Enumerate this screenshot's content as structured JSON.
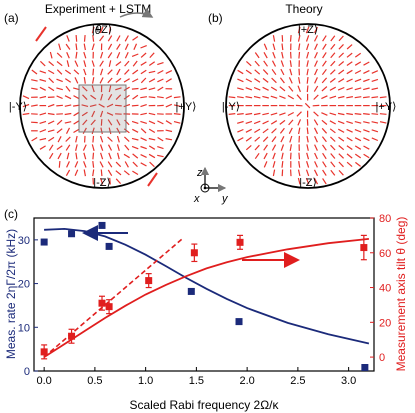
{
  "panels": {
    "a": {
      "label": "(a)",
      "title": "Experiment + LSTM"
    },
    "b": {
      "label": "(b)",
      "title": "Theory"
    },
    "c": {
      "label": "(c)"
    }
  },
  "bloch_labels": {
    "top": "|+Z⟩",
    "bottom": "|-Z⟩",
    "left": "|-Y⟩",
    "right": "|+Y⟩",
    "theta": "θ"
  },
  "axes_glyph": {
    "z": "z",
    "x": "x",
    "y": "y"
  },
  "colors": {
    "field": "#e8332c",
    "blue": "#1b2a7a",
    "red": "#e01e1e"
  },
  "chart_data": {
    "type": "scatter",
    "xlabel": "Scaled Rabi frequency 2Ω/κ",
    "ylabel_left": "Meas. rate 2ηΓ/2π (kHz)",
    "ylabel_right": "Measurement axis tilt θ (deg)",
    "xlim": [
      -0.1,
      3.25
    ],
    "ylim_left": [
      0,
      35
    ],
    "ylim_right": [
      -8,
      80
    ],
    "xticks": [
      "0.0",
      "0.5",
      "1.0",
      "1.5",
      "2.0",
      "2.5",
      "3.0"
    ],
    "yticks_left": [
      "0",
      "10",
      "20",
      "30"
    ],
    "yticks_right": [
      "0",
      "20",
      "40",
      "60",
      "80"
    ],
    "series": [
      {
        "axis": "left",
        "color": "#1b2a7a",
        "marker": "square",
        "points": [
          [
            0.0,
            29.5
          ],
          [
            0.27,
            31.4
          ],
          [
            0.57,
            33.3
          ],
          [
            0.64,
            28.5
          ],
          [
            1.45,
            18.2
          ],
          [
            1.92,
            11.3
          ],
          [
            3.16,
            0.8
          ]
        ],
        "fit": [
          [
            0.0,
            32.3
          ],
          [
            0.2,
            32.5
          ],
          [
            0.4,
            32.0
          ],
          [
            0.6,
            30.8
          ],
          [
            0.8,
            28.9
          ],
          [
            1.0,
            26.6
          ],
          [
            1.2,
            24.0
          ],
          [
            1.4,
            21.3
          ],
          [
            1.6,
            18.8
          ],
          [
            1.8,
            16.5
          ],
          [
            2.0,
            14.4
          ],
          [
            2.4,
            11.0
          ],
          [
            2.8,
            8.4
          ],
          [
            3.2,
            6.3
          ]
        ]
      },
      {
        "axis": "right",
        "color": "#e01e1e",
        "marker": "square",
        "points": [
          [
            0.0,
            3
          ],
          [
            0.27,
            12
          ],
          [
            0.57,
            31
          ],
          [
            0.64,
            29
          ],
          [
            1.03,
            44
          ],
          [
            1.48,
            60
          ],
          [
            1.93,
            66
          ],
          [
            3.15,
            63
          ]
        ],
        "errors": [
          4,
          4,
          4,
          4,
          4,
          5,
          4,
          7
        ],
        "fit": [
          [
            0.0,
            0
          ],
          [
            0.2,
            7.5
          ],
          [
            0.4,
            15
          ],
          [
            0.6,
            22.5
          ],
          [
            0.8,
            29.5
          ],
          [
            1.0,
            36
          ],
          [
            1.2,
            41.5
          ],
          [
            1.4,
            46.5
          ],
          [
            1.6,
            51
          ],
          [
            1.8,
            54.5
          ],
          [
            2.0,
            57.5
          ],
          [
            2.4,
            62
          ],
          [
            2.8,
            65.5
          ],
          [
            3.2,
            68
          ]
        ],
        "slope": [
          [
            0.0,
            0
          ],
          [
            1.36,
            68
          ]
        ]
      }
    ]
  }
}
